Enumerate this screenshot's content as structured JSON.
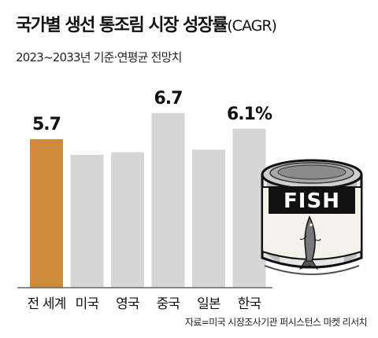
{
  "header": {
    "title": "국가별 생선 통조림 시장 성장률",
    "title_suffix": "(CAGR)",
    "subtitle": "2023~2033년 기준·연평균 전망치"
  },
  "source": "자료=미국 시장조사기관 퍼시스턴스 마켓 리서치",
  "colors": {
    "highlight": "#d08a3c",
    "bar": "#d6d6d6",
    "baseline": "#666666"
  },
  "chart_data": {
    "type": "bar",
    "categories": [
      "전 세계",
      "미국",
      "영국",
      "중국",
      "일본",
      "한국"
    ],
    "values": [
      5.7,
      5.1,
      5.2,
      6.7,
      5.3,
      6.1
    ],
    "data_labels": [
      "5.7",
      "",
      "",
      "6.7",
      "",
      "6.1%"
    ],
    "highlight_index": 0,
    "ylim": [
      0,
      7.3
    ],
    "grid": false,
    "legend": "none"
  },
  "illustration": {
    "can_label": "FISH",
    "icon": "fish-can-icon"
  }
}
